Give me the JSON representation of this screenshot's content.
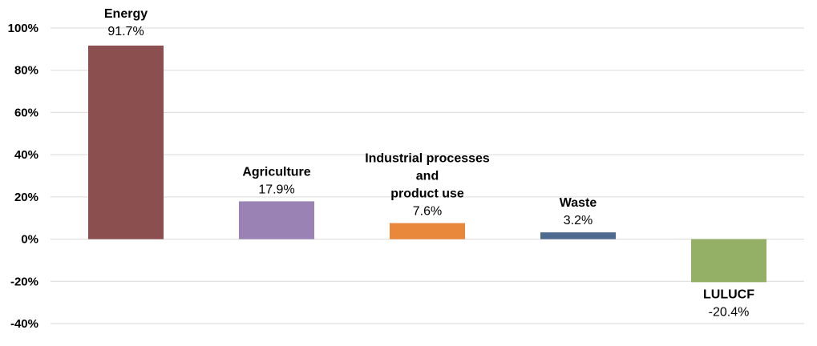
{
  "chart_data": {
    "type": "bar",
    "title": "",
    "xlabel": "",
    "ylabel": "",
    "ylim": [
      -40,
      100
    ],
    "yticks": [
      100,
      80,
      60,
      40,
      20,
      0,
      -20,
      -40
    ],
    "ytick_labels": [
      "100%",
      "80%",
      "60%",
      "40%",
      "20%",
      "0%",
      "-20%",
      "-40%"
    ],
    "grid": true,
    "categories": [
      {
        "name_lines": [
          "Energy"
        ],
        "value": 91.7,
        "label": "91.7%",
        "color": "#8c4f4f"
      },
      {
        "name_lines": [
          "Agriculture"
        ],
        "value": 17.9,
        "label": "17.9%",
        "color": "#9b82b5"
      },
      {
        "name_lines": [
          "Industrial processes",
          "and",
          "product use"
        ],
        "value": 7.6,
        "label": "7.6%",
        "color": "#e9883b"
      },
      {
        "name_lines": [
          "Waste"
        ],
        "value": 3.2,
        "label": "3.2%",
        "color": "#4f6a8f"
      },
      {
        "name_lines": [
          "LULUCF"
        ],
        "value": -20.4,
        "label": "-20.4%",
        "color": "#93b066"
      }
    ]
  }
}
